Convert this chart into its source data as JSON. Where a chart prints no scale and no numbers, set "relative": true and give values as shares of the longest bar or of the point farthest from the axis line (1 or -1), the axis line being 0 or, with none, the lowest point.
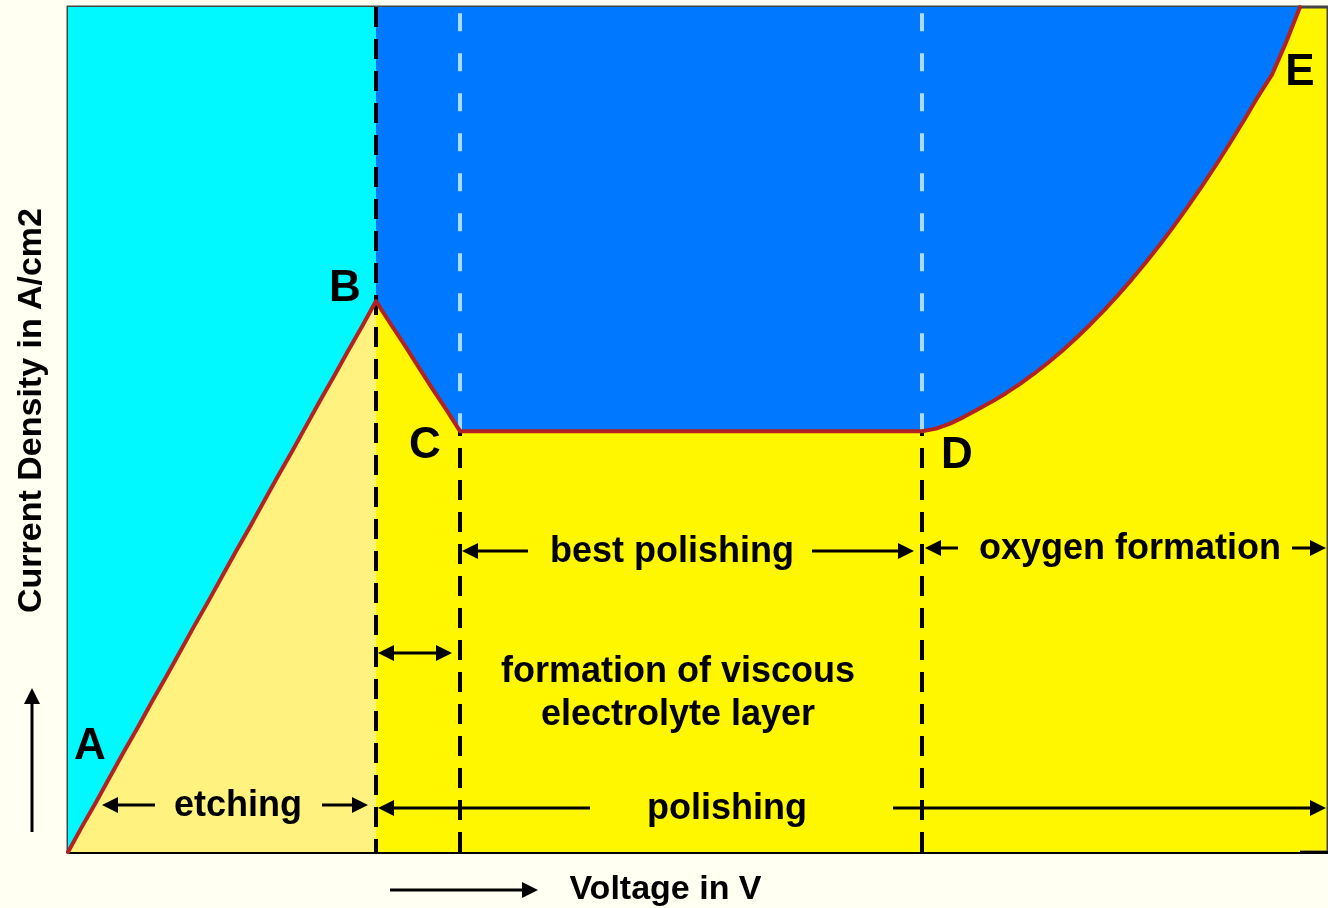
{
  "chart_data": {
    "type": "area",
    "relative": true,
    "xlabel": "Voltage in V",
    "ylabel": "Current Density in A/cm2",
    "categories": [
      null,
      null,
      null,
      null,
      null,
      null,
      null,
      null,
      null,
      null,
      null,
      null,
      null,
      null,
      null,
      null,
      null,
      null,
      null,
      null,
      null,
      null,
      null,
      null,
      null,
      null,
      null,
      null,
      null,
      null,
      null,
      null,
      null,
      null,
      null,
      null,
      null,
      null,
      null,
      null,
      null,
      null,
      null,
      null,
      null,
      null,
      null,
      null,
      null,
      null,
      null,
      null,
      null,
      null,
      null,
      null,
      null,
      null,
      null,
      null,
      null,
      null,
      null,
      null,
      null,
      null,
      null,
      null,
      null,
      null,
      null,
      null,
      null,
      null,
      null,
      null,
      null,
      null,
      null,
      null,
      null,
      null,
      null,
      null,
      null,
      null,
      null,
      null,
      null,
      null,
      null
    ],
    "series": [
      {
        "color": "#fff27e",
        "values": [
          0,
          0.03,
          0.059,
          0.089,
          0.119,
          0.148,
          0.178,
          0.207,
          0.237,
          0.267,
          0.296,
          0.326,
          0.356,
          0.385,
          0.415,
          0.445,
          0.474,
          0.504,
          0.534,
          0.563,
          0.593,
          0.622,
          0.652,
          null,
          null,
          null,
          null,
          null,
          null,
          null,
          null,
          null,
          null,
          null,
          null,
          null,
          null,
          null,
          null,
          null,
          null,
          null,
          null,
          null,
          null,
          null,
          null,
          null,
          null,
          null,
          null,
          null,
          null,
          null,
          null,
          null,
          null,
          null,
          null,
          null,
          null,
          null,
          null,
          null,
          null,
          null,
          null,
          null,
          null,
          null,
          null,
          null,
          null,
          null,
          null,
          null,
          null,
          null,
          null,
          null,
          null,
          null,
          null,
          null,
          null,
          null,
          null,
          null,
          null,
          null,
          null
        ]
      },
      {
        "color": "#fff700",
        "values": [
          null,
          null,
          null,
          null,
          null,
          null,
          null,
          null,
          null,
          null,
          null,
          null,
          null,
          null,
          null,
          null,
          null,
          null,
          null,
          null,
          null,
          null,
          0.652,
          0.626,
          0.601,
          0.575,
          0.549,
          0.524,
          0.498,
          0.498,
          0.498,
          0.498,
          0.498,
          0.498,
          0.498,
          0.498,
          0.498,
          0.498,
          0.498,
          0.498,
          0.498,
          0.498,
          0.498,
          0.498,
          0.498,
          0.498,
          0.498,
          0.498,
          0.498,
          0.498,
          0.498,
          0.498,
          0.498,
          0.498,
          0.498,
          0.498,
          0.498,
          0.498,
          0.498,
          0.498,
          0.498,
          0.498,
          0.501,
          0.507,
          0.515,
          0.524,
          0.533,
          0.543,
          0.554,
          0.566,
          0.579,
          0.593,
          0.608,
          0.624,
          0.641,
          0.659,
          0.678,
          0.698,
          0.719,
          0.741,
          0.764,
          0.788,
          0.813,
          0.839,
          0.866,
          0.894,
          0.92,
          0.958,
          1.0,
          null,
          null
        ]
      },
      {
        "type": "line",
        "color": "#b22222",
        "values": [
          0,
          0.03,
          0.059,
          0.089,
          0.119,
          0.148,
          0.178,
          0.207,
          0.237,
          0.267,
          0.296,
          0.326,
          0.356,
          0.385,
          0.415,
          0.445,
          0.474,
          0.504,
          0.534,
          0.563,
          0.593,
          0.622,
          0.652,
          0.626,
          0.601,
          0.575,
          0.549,
          0.524,
          0.498,
          0.498,
          0.498,
          0.498,
          0.498,
          0.498,
          0.498,
          0.498,
          0.498,
          0.498,
          0.498,
          0.498,
          0.498,
          0.498,
          0.498,
          0.498,
          0.498,
          0.498,
          0.498,
          0.498,
          0.498,
          0.498,
          0.498,
          0.498,
          0.498,
          0.498,
          0.498,
          0.498,
          0.498,
          0.498,
          0.498,
          0.498,
          0.498,
          0.498,
          0.501,
          0.507,
          0.515,
          0.524,
          0.533,
          0.543,
          0.554,
          0.566,
          0.579,
          0.593,
          0.608,
          0.624,
          0.641,
          0.659,
          0.678,
          0.698,
          0.719,
          0.741,
          0.764,
          0.788,
          0.813,
          0.839,
          0.866,
          0.894,
          0.92,
          0.958,
          1.0,
          null,
          null
        ]
      }
    ],
    "annotations": [
      "A",
      "B",
      "C",
      "D",
      "E",
      "best polishing",
      "oxygen formation",
      "formation of viscous electrolyte layer",
      "etching",
      "polishing"
    ]
  }
}
